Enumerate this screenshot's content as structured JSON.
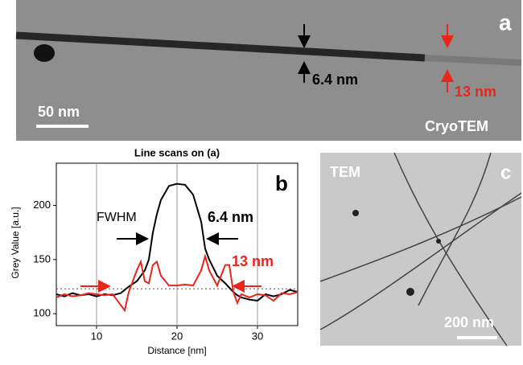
{
  "panel_a": {
    "label": "a",
    "width_label": "6.4 nm",
    "outer_label": "13 nm",
    "scale_bar": "50 nm",
    "method": "CryoTEM"
  },
  "chart_data": {
    "type": "line",
    "title": "Line scans on (a)",
    "x_label": "Distance [nm]",
    "y_label": "Grey Value [a.u.]",
    "x": [
      5,
      6,
      7,
      8,
      9,
      10,
      11,
      12,
      13,
      13.5,
      14,
      15,
      15.5,
      16,
      16.5,
      17,
      17.5,
      18,
      19,
      20,
      21,
      22,
      23,
      23.5,
      24,
      25,
      26,
      26.5,
      27,
      27.5,
      28,
      29,
      30,
      31,
      32,
      33,
      34,
      35
    ],
    "series": [
      {
        "name": "6.4 nm",
        "color": "#000000",
        "values": [
          118,
          116,
          119,
          117,
          118,
          116,
          118,
          117,
          119,
          122,
          125,
          130,
          135,
          140,
          150,
          175,
          192,
          205,
          218,
          220,
          219,
          210,
          185,
          160,
          150,
          135,
          128,
          124,
          120,
          117,
          115,
          113,
          112,
          118,
          116,
          118,
          122,
          120
        ]
      },
      {
        "name": "13 nm",
        "color": "#e8261c",
        "values": [
          115,
          118,
          116,
          117,
          119,
          118,
          117,
          118,
          108,
          103,
          120,
          140,
          148,
          130,
          128,
          145,
          148,
          135,
          126,
          126,
          127,
          126,
          140,
          153,
          140,
          126,
          145,
          145,
          120,
          110,
          118,
          115,
          118,
          117,
          112,
          119,
          118,
          120
        ]
      }
    ],
    "reference_line": 123,
    "annotation": "FWHM",
    "panel_label": "b",
    "xlim": [
      5,
      35
    ],
    "xticks": [
      10,
      20,
      30
    ],
    "ylim": [
      89,
      239
    ],
    "yticks": [
      100,
      150,
      200
    ],
    "grid": true
  },
  "panel_c": {
    "method": "TEM",
    "label": "c",
    "scale_bar": "200 nm"
  }
}
